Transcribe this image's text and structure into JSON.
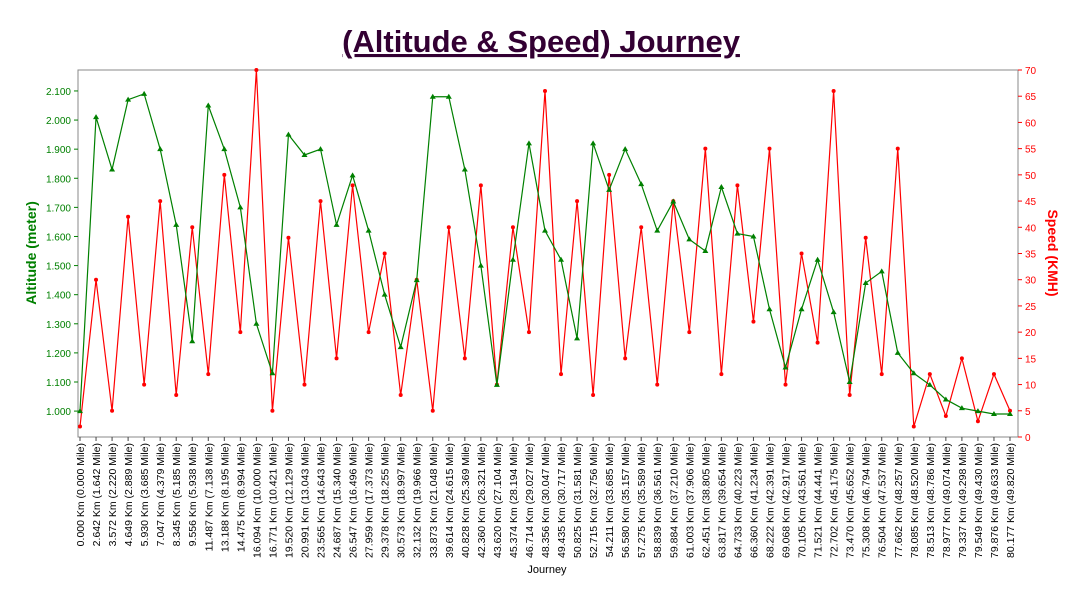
{
  "chart_data": {
    "type": "line",
    "title": "(Altitude & Speed) Journey",
    "xlabel": "Journey",
    "ylabel": "Altitude (meter)",
    "y2label": "Speed (KMH)",
    "categories": [
      "0.000 Km (0.000 Mile)",
      "2.642 Km (1.642 Mile)",
      "3.572 Km (2.220 Mile)",
      "4.649 Km (2.889 Mile)",
      "5.930 Km (3.685 Mile)",
      "7.047 Km (4.379 Mile)",
      "8.345 Km (5.185 Mile)",
      "9.556 Km (5.938 Mile)",
      "11.487 Km (7.138 Mile)",
      "13.188 Km (8.195 Mile)",
      "14.475 Km (8.994 Mile)",
      "16.094 Km (10.000 Mile)",
      "16.771 Km (10.421 Mile)",
      "19.520 Km (12.129 Mile)",
      "20.991 Km (13.043 Mile)",
      "23.565 Km (14.643 Mile)",
      "24.687 Km (15.340 Mile)",
      "26.547 Km (16.496 Mile)",
      "27.959 Km (17.373 Mile)",
      "29.378 Km (18.255 Mile)",
      "30.573 Km (18.997 Mile)",
      "32.132 Km (19.966 Mile)",
      "33.873 Km (21.048 Mile)",
      "39.614 Km (24.615 Mile)",
      "40.828 Km (25.369 Mile)",
      "42.360 Km (26.321 Mile)",
      "43.620 Km (27.104 Mile)",
      "45.374 Km (28.194 Mile)",
      "46.714 Km (29.027 Mile)",
      "48.356 Km (30.047 Mile)",
      "49.435 Km (30.717 Mile)",
      "50.825 Km (31.581 Mile)",
      "52.715 Km (32.756 Mile)",
      "54.211 Km (33.685 Mile)",
      "56.580 Km (35.157 Mile)",
      "57.275 Km (35.589 Mile)",
      "58.839 Km (36.561 Mile)",
      "59.884 Km (37.210 Mile)",
      "61.003 Km (37.906 Mile)",
      "62.451 Km (38.805 Mile)",
      "63.817 Km (39.654 Mile)",
      "64.733 Km (40.223 Mile)",
      "66.360 Km (41.234 Mile)",
      "68.222 Km (42.391 Mile)",
      "69.068 Km (42.917 Mile)",
      "70.105 Km (43.561 Mile)",
      "71.521 Km (44.441 Mile)",
      "72.702 Km (45.175 Mile)",
      "73.470 Km (45.652 Mile)",
      "75.308 Km (46.794 Mile)",
      "76.504 Km (47.537 Mile)",
      "77.662 Km (48.257 Mile)",
      "78.085 Km (48.520 Mile)",
      "78.513 Km (48.786 Mile)",
      "78.977 Km (49.074 Mile)",
      "79.337 Km (49.298 Mile)",
      "79.549 Km (49.430 Mile)",
      "79.876 Km (49.633 Mile)",
      "80.177 Km (49.820 Mile)"
    ],
    "series": [
      {
        "name": "Altitude",
        "color": "#008000",
        "axis": "y",
        "values": [
          1000,
          2010,
          1830,
          2070,
          2090,
          1900,
          1640,
          1240,
          2050,
          1900,
          1700,
          1300,
          1130,
          1950,
          1880,
          1900,
          1640,
          1810,
          1620,
          1400,
          1220,
          1450,
          2080,
          2080,
          1830,
          1500,
          1090,
          1520,
          1920,
          1620,
          1520,
          1250,
          1920,
          1760,
          1900,
          1780,
          1620,
          1720,
          1590,
          1550,
          1770,
          1610,
          1600,
          1350,
          1150,
          1350,
          1520,
          1340,
          1100,
          1440,
          1480,
          1200,
          1130,
          1090,
          1040,
          1010,
          1000,
          990,
          990
        ]
      },
      {
        "name": "Speed",
        "color": "#ff0000",
        "axis": "y2",
        "values": [
          2,
          30,
          5,
          42,
          10,
          45,
          8,
          40,
          12,
          50,
          20,
          70,
          5,
          38,
          10,
          45,
          15,
          48,
          20,
          35,
          8,
          30,
          5,
          40,
          15,
          48,
          10,
          40,
          20,
          66,
          12,
          45,
          8,
          50,
          15,
          40,
          10,
          45,
          20,
          55,
          12,
          48,
          22,
          55,
          10,
          35,
          18,
          66,
          8,
          38,
          12,
          55,
          2,
          12,
          4,
          15,
          3,
          12,
          5
        ]
      }
    ],
    "ylim": [
      911,
      2172
    ],
    "yticks": [
      {
        "value": 1000,
        "label": "1.000"
      },
      {
        "value": 1100,
        "label": "1.100"
      },
      {
        "value": 1200,
        "label": "1.200"
      },
      {
        "value": 1300,
        "label": "1.300"
      },
      {
        "value": 1400,
        "label": "1.400"
      },
      {
        "value": 1500,
        "label": "1.500"
      },
      {
        "value": 1600,
        "label": "1.600"
      },
      {
        "value": 1700,
        "label": "1.700"
      },
      {
        "value": 1800,
        "label": "1.800"
      },
      {
        "value": 1900,
        "label": "1.900"
      },
      {
        "value": 2000,
        "label": "2.000"
      },
      {
        "value": 2100,
        "label": "2.100"
      }
    ],
    "y2lim": [
      0,
      70
    ],
    "y2ticks": [
      0,
      5,
      10,
      15,
      20,
      25,
      30,
      35,
      40,
      45,
      50,
      55,
      60,
      65,
      70
    ]
  }
}
